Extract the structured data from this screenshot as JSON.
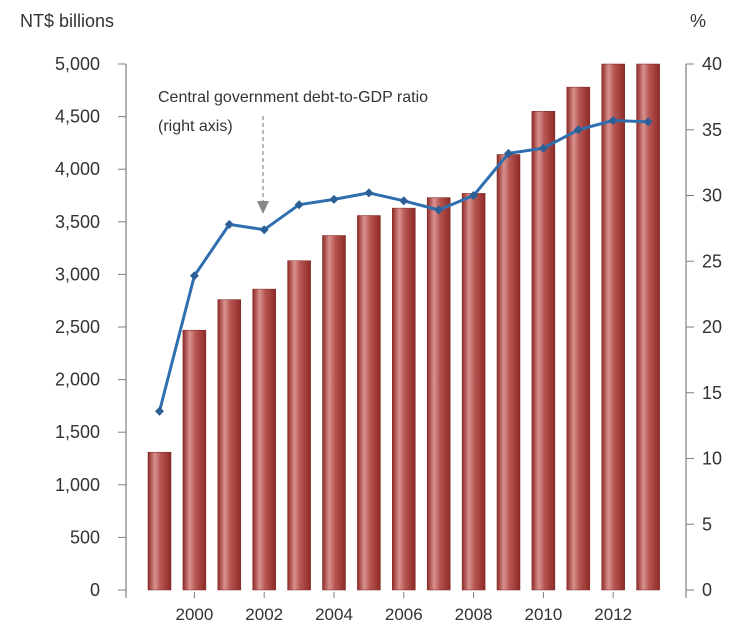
{
  "chart_data": {
    "type": "bar",
    "left_axis_label": "NT$ billions",
    "right_axis_label": "%",
    "annotation": {
      "line1": "Central government debt-to-GDP ratio",
      "line2": "(right axis)"
    },
    "x_tick_labels": [
      "2000",
      "2002",
      "2004",
      "2006",
      "2008",
      "2010",
      "2012"
    ],
    "years": [
      1999,
      2000,
      2001,
      2002,
      2003,
      2004,
      2005,
      2006,
      2007,
      2008,
      2009,
      2010,
      2011,
      2012,
      2013
    ],
    "ylim_left": [
      0,
      5000
    ],
    "yticks_left": [
      "0",
      "500",
      "1,000",
      "1,500",
      "2,000",
      "2,500",
      "3,000",
      "3,500",
      "4,000",
      "4,500",
      "5,000"
    ],
    "ylim_right": [
      0,
      40
    ],
    "yticks_right": [
      "0",
      "5",
      "10",
      "15",
      "20",
      "25",
      "30",
      "35",
      "40"
    ],
    "series": [
      {
        "kind": "bar",
        "axis": "left",
        "values": [
          1310,
          2470,
          2760,
          2860,
          3130,
          3370,
          3560,
          3630,
          3730,
          3770,
          4140,
          4550,
          4780,
          5000,
          5000
        ]
      },
      {
        "kind": "line",
        "axis": "right",
        "values": [
          13.6,
          23.9,
          27.8,
          27.4,
          29.3,
          29.7,
          30.2,
          29.6,
          28.9,
          30.0,
          33.2,
          33.6,
          35.0,
          35.7,
          35.6
        ]
      }
    ],
    "colors": {
      "bar_dark": "#8e2a26",
      "bar_mid": "#b65552",
      "bar_light": "#d9928f",
      "line": "#2f6fb0",
      "marker": "#2c5f95",
      "axis": "#7f7f7f",
      "arrow": "#888888"
    },
    "grid": false,
    "legend": "none"
  }
}
